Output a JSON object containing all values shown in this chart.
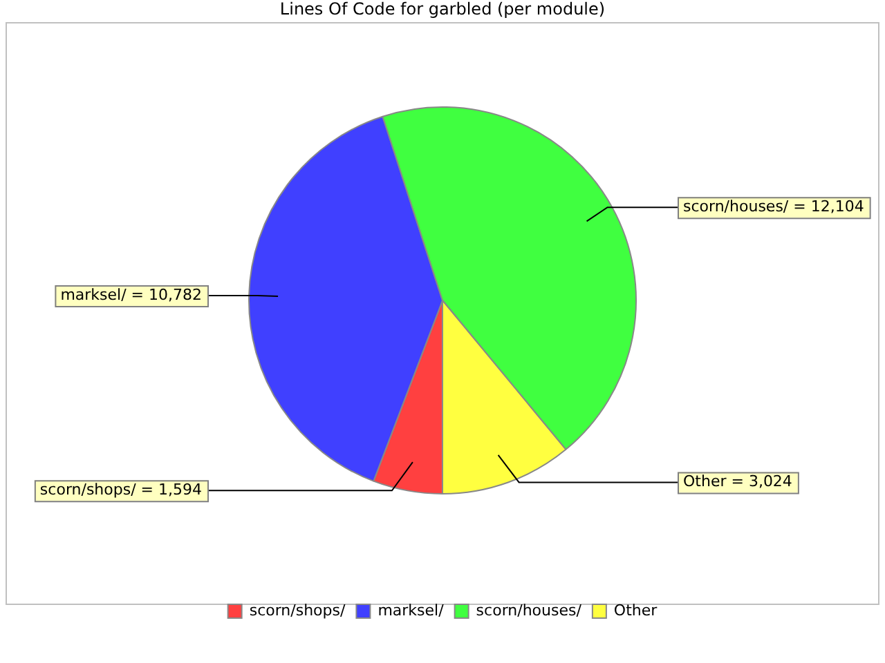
{
  "chart_data": {
    "type": "pie",
    "title": "Lines Of Code for garbled (per module)",
    "categories": [
      "scorn/shops/",
      "marksel/",
      "scorn/houses/",
      "Other"
    ],
    "values": [
      1594,
      10782,
      12104,
      3024
    ],
    "colors": [
      "#ff4040",
      "#4040ff",
      "#40ff40",
      "#ffff40"
    ],
    "value_labels": [
      "scorn/shops/ = 1,594",
      "marksel/ = 10,782",
      "scorn/houses/ = 12,104",
      "Other = 3,024"
    ],
    "legend": "bottom"
  }
}
